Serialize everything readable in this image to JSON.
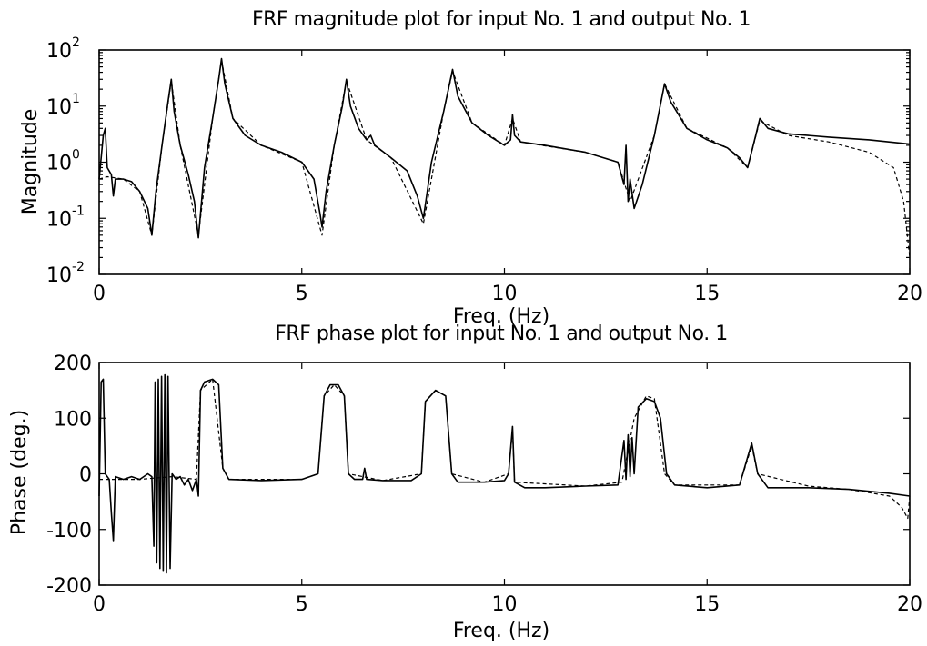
{
  "chart_data": [
    {
      "type": "line",
      "title": "FRF magnitude plot for input No. 1 and output No. 1",
      "xlabel": "Freq. (Hz)",
      "ylabel": "Magnitude",
      "xlim": [
        0,
        20
      ],
      "ylim": [
        0.01,
        100
      ],
      "yscale": "log",
      "grid": false,
      "x_ticks": [
        "0",
        "5",
        "10",
        "15",
        "20"
      ],
      "y_ticks": [
        {
          "base": "10",
          "exp": "-2",
          "value": 0.01
        },
        {
          "base": "10",
          "exp": "-1",
          "value": 0.1
        },
        {
          "base": "10",
          "exp": "0",
          "value": 1
        },
        {
          "base": "10",
          "exp": "1",
          "value": 10
        },
        {
          "base": "10",
          "exp": "2",
          "value": 100
        }
      ],
      "series": [
        {
          "style": "solid",
          "points": [
            [
              0,
              0.5
            ],
            [
              0.1,
              3
            ],
            [
              0.15,
              4
            ],
            [
              0.2,
              0.8
            ],
            [
              0.3,
              0.6
            ],
            [
              0.35,
              0.25
            ],
            [
              0.4,
              0.5
            ],
            [
              0.6,
              0.5
            ],
            [
              0.8,
              0.45
            ],
            [
              1.0,
              0.3
            ],
            [
              1.2,
              0.15
            ],
            [
              1.3,
              0.05
            ],
            [
              1.4,
              0.3
            ],
            [
              1.55,
              2
            ],
            [
              1.7,
              12
            ],
            [
              1.78,
              30
            ],
            [
              1.85,
              8
            ],
            [
              2.0,
              2
            ],
            [
              2.2,
              0.6
            ],
            [
              2.35,
              0.2
            ],
            [
              2.45,
              0.045
            ],
            [
              2.6,
              0.8
            ],
            [
              2.8,
              6
            ],
            [
              2.95,
              30
            ],
            [
              3.02,
              70
            ],
            [
              3.1,
              25
            ],
            [
              3.3,
              6
            ],
            [
              3.6,
              3
            ],
            [
              4.0,
              2
            ],
            [
              4.5,
              1.5
            ],
            [
              5.0,
              1
            ],
            [
              5.3,
              0.5
            ],
            [
              5.45,
              0.12
            ],
            [
              5.5,
              0.07
            ],
            [
              5.6,
              0.3
            ],
            [
              5.8,
              2
            ],
            [
              6.0,
              10
            ],
            [
              6.1,
              30
            ],
            [
              6.2,
              10
            ],
            [
              6.4,
              4
            ],
            [
              6.6,
              2.5
            ],
            [
              6.7,
              3
            ],
            [
              6.8,
              2
            ],
            [
              7.2,
              1.2
            ],
            [
              7.6,
              0.7
            ],
            [
              7.85,
              0.25
            ],
            [
              8.0,
              0.1
            ],
            [
              8.2,
              1
            ],
            [
              8.5,
              8
            ],
            [
              8.72,
              45
            ],
            [
              8.85,
              15
            ],
            [
              9.2,
              5
            ],
            [
              9.6,
              3
            ],
            [
              10.0,
              2
            ],
            [
              10.15,
              2.5
            ],
            [
              10.2,
              7
            ],
            [
              10.25,
              3
            ],
            [
              10.4,
              2.3
            ],
            [
              11,
              2
            ],
            [
              12,
              1.5
            ],
            [
              12.8,
              1
            ],
            [
              12.95,
              0.4
            ],
            [
              13.0,
              2
            ],
            [
              13.05,
              0.2
            ],
            [
              13.1,
              0.5
            ],
            [
              13.2,
              0.15
            ],
            [
              13.4,
              0.4
            ],
            [
              13.7,
              3
            ],
            [
              13.95,
              25
            ],
            [
              14.1,
              12
            ],
            [
              14.5,
              4
            ],
            [
              15,
              2.5
            ],
            [
              15.5,
              1.8
            ],
            [
              15.8,
              1.2
            ],
            [
              16.0,
              0.8
            ],
            [
              16.2,
              3
            ],
            [
              16.3,
              6
            ],
            [
              16.5,
              4
            ],
            [
              17,
              3.2
            ],
            [
              18,
              2.8
            ],
            [
              19,
              2.5
            ],
            [
              20,
              2.1
            ]
          ]
        },
        {
          "style": "dashed",
          "points": [
            [
              0,
              0.5
            ],
            [
              0.2,
              0.55
            ],
            [
              0.6,
              0.5
            ],
            [
              1.0,
              0.3
            ],
            [
              1.3,
              0.05
            ],
            [
              1.55,
              2
            ],
            [
              1.78,
              28
            ],
            [
              2.0,
              2
            ],
            [
              2.45,
              0.05
            ],
            [
              2.8,
              6
            ],
            [
              3.02,
              65
            ],
            [
              3.3,
              6
            ],
            [
              4.0,
              2
            ],
            [
              5.0,
              1
            ],
            [
              5.5,
              0.05
            ],
            [
              5.8,
              2
            ],
            [
              6.1,
              28
            ],
            [
              6.6,
              2.5
            ],
            [
              7.2,
              1.2
            ],
            [
              8.0,
              0.08
            ],
            [
              8.5,
              8
            ],
            [
              8.72,
              42
            ],
            [
              9.2,
              5
            ],
            [
              10.0,
              2
            ],
            [
              10.2,
              6
            ],
            [
              10.4,
              2.3
            ],
            [
              12,
              1.5
            ],
            [
              12.8,
              1
            ],
            [
              13.1,
              0.2
            ],
            [
              13.7,
              3
            ],
            [
              13.95,
              25
            ],
            [
              14.5,
              4
            ],
            [
              15.5,
              1.8
            ],
            [
              16.0,
              0.8
            ],
            [
              16.3,
              5.5
            ],
            [
              17,
              3
            ],
            [
              18,
              2.3
            ],
            [
              19,
              1.5
            ],
            [
              19.6,
              0.8
            ],
            [
              19.85,
              0.2
            ],
            [
              20,
              0.02
            ]
          ]
        }
      ]
    },
    {
      "type": "line",
      "title": "FRF phase plot for input No. 1 and output No. 1",
      "xlabel": "Freq. (Hz)",
      "ylabel": "Phase (deg.)",
      "xlim": [
        0,
        20
      ],
      "ylim": [
        -200,
        200
      ],
      "grid": false,
      "x_ticks": [
        "0",
        "5",
        "10",
        "15",
        "20"
      ],
      "y_ticks": [
        "-200",
        "-100",
        "0",
        "100",
        "200"
      ],
      "series": [
        {
          "style": "solid",
          "points": [
            [
              0,
              -40
            ],
            [
              0.05,
              165
            ],
            [
              0.1,
              170
            ],
            [
              0.15,
              0
            ],
            [
              0.25,
              -10
            ],
            [
              0.3,
              -70
            ],
            [
              0.35,
              -120
            ],
            [
              0.4,
              -5
            ],
            [
              0.6,
              -10
            ],
            [
              0.8,
              -5
            ],
            [
              1.0,
              -10
            ],
            [
              1.2,
              0
            ],
            [
              1.3,
              -5
            ],
            [
              1.35,
              -130
            ],
            [
              1.38,
              165
            ],
            [
              1.42,
              -160
            ],
            [
              1.46,
              170
            ],
            [
              1.5,
              -170
            ],
            [
              1.54,
              175
            ],
            [
              1.58,
              -175
            ],
            [
              1.62,
              178
            ],
            [
              1.66,
              -178
            ],
            [
              1.7,
              175
            ],
            [
              1.75,
              -170
            ],
            [
              1.8,
              0
            ],
            [
              1.9,
              -10
            ],
            [
              2.0,
              -5
            ],
            [
              2.1,
              -20
            ],
            [
              2.2,
              -10
            ],
            [
              2.3,
              -30
            ],
            [
              2.4,
              -10
            ],
            [
              2.45,
              -40
            ],
            [
              2.5,
              150
            ],
            [
              2.6,
              165
            ],
            [
              2.8,
              170
            ],
            [
              2.95,
              160
            ],
            [
              3.05,
              10
            ],
            [
              3.2,
              -10
            ],
            [
              4,
              -12
            ],
            [
              5,
              -10
            ],
            [
              5.4,
              0
            ],
            [
              5.55,
              140
            ],
            [
              5.7,
              160
            ],
            [
              5.9,
              160
            ],
            [
              6.05,
              140
            ],
            [
              6.15,
              0
            ],
            [
              6.3,
              -10
            ],
            [
              6.5,
              -10
            ],
            [
              6.55,
              10
            ],
            [
              6.6,
              -10
            ],
            [
              7,
              -12
            ],
            [
              7.7,
              -12
            ],
            [
              7.95,
              0
            ],
            [
              8.05,
              130
            ],
            [
              8.3,
              150
            ],
            [
              8.55,
              140
            ],
            [
              8.7,
              0
            ],
            [
              8.85,
              -15
            ],
            [
              9.5,
              -15
            ],
            [
              10.0,
              -12
            ],
            [
              10.1,
              0
            ],
            [
              10.2,
              85
            ],
            [
              10.25,
              -15
            ],
            [
              10.5,
              -25
            ],
            [
              11,
              -25
            ],
            [
              12,
              -22
            ],
            [
              12.8,
              -20
            ],
            [
              12.95,
              60
            ],
            [
              13.0,
              -10
            ],
            [
              13.05,
              70
            ],
            [
              13.1,
              -5
            ],
            [
              13.15,
              65
            ],
            [
              13.2,
              0
            ],
            [
              13.3,
              120
            ],
            [
              13.5,
              135
            ],
            [
              13.7,
              130
            ],
            [
              13.85,
              100
            ],
            [
              14.0,
              0
            ],
            [
              14.2,
              -20
            ],
            [
              15,
              -25
            ],
            [
              15.8,
              -20
            ],
            [
              16.0,
              30
            ],
            [
              16.1,
              55
            ],
            [
              16.25,
              0
            ],
            [
              16.5,
              -25
            ],
            [
              17.5,
              -25
            ],
            [
              18.5,
              -28
            ],
            [
              19.5,
              -35
            ],
            [
              20,
              -40
            ]
          ]
        },
        {
          "style": "dashed",
          "points": [
            [
              0,
              -10
            ],
            [
              0.5,
              -10
            ],
            [
              1.0,
              -10
            ],
            [
              1.3,
              -8
            ],
            [
              1.8,
              -5
            ],
            [
              2.4,
              -10
            ],
            [
              2.5,
              150
            ],
            [
              2.8,
              170
            ],
            [
              3.05,
              10
            ],
            [
              3.2,
              -10
            ],
            [
              5,
              -10
            ],
            [
              5.4,
              0
            ],
            [
              5.55,
              140
            ],
            [
              5.8,
              160
            ],
            [
              6.05,
              140
            ],
            [
              6.15,
              0
            ],
            [
              7,
              -12
            ],
            [
              7.95,
              0
            ],
            [
              8.05,
              130
            ],
            [
              8.3,
              150
            ],
            [
              8.55,
              140
            ],
            [
              8.7,
              0
            ],
            [
              9.5,
              -15
            ],
            [
              10.1,
              0
            ],
            [
              10.2,
              80
            ],
            [
              10.25,
              -15
            ],
            [
              12,
              -22
            ],
            [
              12.9,
              -15
            ],
            [
              13.2,
              100
            ],
            [
              13.5,
              140
            ],
            [
              13.7,
              135
            ],
            [
              13.95,
              0
            ],
            [
              14.2,
              -20
            ],
            [
              15.8,
              -20
            ],
            [
              16.1,
              50
            ],
            [
              16.25,
              0
            ],
            [
              17.5,
              -22
            ],
            [
              18.5,
              -28
            ],
            [
              19.5,
              -40
            ],
            [
              19.8,
              -60
            ],
            [
              19.95,
              -80
            ],
            [
              20,
              -40
            ]
          ]
        }
      ]
    }
  ]
}
